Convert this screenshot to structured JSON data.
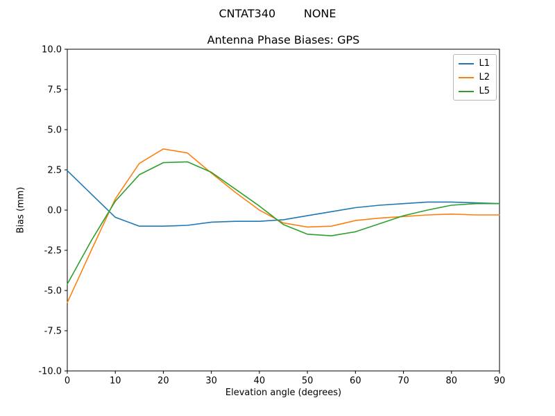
{
  "figure": {
    "suptitle": "CNTAT340        NONE",
    "title": "Antenna Phase Biases: GPS"
  },
  "chart_data": {
    "type": "line",
    "title": "Antenna Phase Biases: GPS",
    "xlabel": "Elevation angle (degrees)",
    "ylabel": "Bias (mm)",
    "xlim": [
      0,
      90
    ],
    "ylim": [
      -10,
      10
    ],
    "xticks": [
      0,
      10,
      20,
      30,
      40,
      50,
      60,
      70,
      80,
      90
    ],
    "yticks": [
      -10,
      -7.5,
      -5,
      -2.5,
      0,
      2.5,
      5,
      7.5,
      10
    ],
    "grid": false,
    "legend_position": "upper right",
    "x": [
      0,
      5,
      10,
      15,
      20,
      25,
      30,
      35,
      40,
      45,
      50,
      55,
      60,
      65,
      70,
      75,
      80,
      85,
      90
    ],
    "series": [
      {
        "name": "L1",
        "color": "#1f77b4",
        "values": [
          2.45,
          1.0,
          -0.45,
          -1.0,
          -1.0,
          -0.95,
          -0.75,
          -0.7,
          -0.7,
          -0.6,
          -0.35,
          -0.1,
          0.15,
          0.3,
          0.4,
          0.5,
          0.5,
          0.45,
          0.4
        ]
      },
      {
        "name": "L2",
        "color": "#ff7f0e",
        "values": [
          -5.75,
          -2.5,
          0.7,
          2.9,
          3.8,
          3.55,
          2.3,
          1.1,
          0.0,
          -0.8,
          -1.05,
          -1.0,
          -0.65,
          -0.5,
          -0.4,
          -0.3,
          -0.25,
          -0.3,
          -0.3
        ]
      },
      {
        "name": "L5",
        "color": "#2ca02c",
        "values": [
          -4.6,
          -1.9,
          0.55,
          2.2,
          2.95,
          3.0,
          2.35,
          1.3,
          0.25,
          -0.9,
          -1.5,
          -1.6,
          -1.35,
          -0.85,
          -0.35,
          0.0,
          0.3,
          0.4,
          0.4
        ]
      }
    ]
  }
}
